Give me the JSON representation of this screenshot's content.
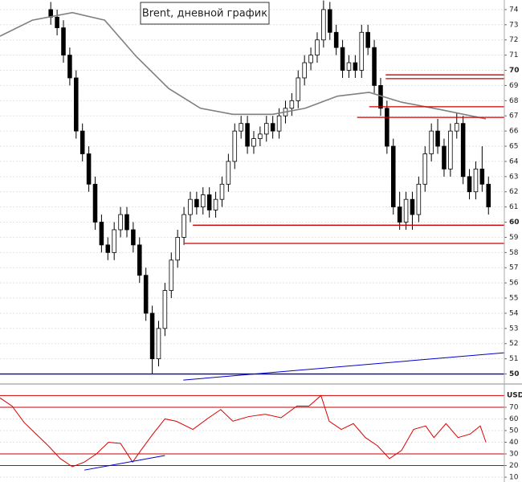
{
  "chart_data": {
    "type": "candlestick",
    "title": "Brent, дневной график",
    "xlim": [
      -8,
      71.5
    ],
    "ylim": [
      49.5,
      74.63
    ],
    "yticks": [
      50,
      51,
      52,
      53,
      54,
      55,
      56,
      57,
      58,
      59,
      60,
      61,
      62,
      63,
      64,
      65,
      66,
      67,
      68,
      69,
      70,
      71,
      72,
      73,
      74
    ],
    "grid": true,
    "candle_color": "#000000",
    "ohlc": [
      [
        74.0,
        74.5,
        73.0,
        73.5
      ],
      [
        73.5,
        74.0,
        72.3,
        72.8
      ],
      [
        72.8,
        73.3,
        70.5,
        71.0
      ],
      [
        71.0,
        71.5,
        69.0,
        69.5
      ],
      [
        69.5,
        70.0,
        65.5,
        66.0
      ],
      [
        66.0,
        66.5,
        64.0,
        64.5
      ],
      [
        64.5,
        65.0,
        62.0,
        62.5
      ],
      [
        62.5,
        63.0,
        59.5,
        60.0
      ],
      [
        60.0,
        60.5,
        58.0,
        58.5
      ],
      [
        58.5,
        59.0,
        57.5,
        58.0
      ],
      [
        58.0,
        60.0,
        57.5,
        59.5
      ],
      [
        59.5,
        61.0,
        59.0,
        60.5
      ],
      [
        60.5,
        61.0,
        59.0,
        59.5
      ],
      [
        59.5,
        60.0,
        58.0,
        58.5
      ],
      [
        58.5,
        59.0,
        56.0,
        56.5
      ],
      [
        56.5,
        57.0,
        53.5,
        54.0
      ],
      [
        54.0,
        54.5,
        50.0,
        51.0
      ],
      [
        51.0,
        53.5,
        50.5,
        53.0
      ],
      [
        53.0,
        56.0,
        52.5,
        55.5
      ],
      [
        55.5,
        58.0,
        55.0,
        57.5
      ],
      [
        57.5,
        59.5,
        57.0,
        59.0
      ],
      [
        59.0,
        61.0,
        58.5,
        60.5
      ],
      [
        60.5,
        62.0,
        60.0,
        61.5
      ],
      [
        61.5,
        62.0,
        60.5,
        61.0
      ],
      [
        61.0,
        62.3,
        60.5,
        61.8
      ],
      [
        61.8,
        62.3,
        60.3,
        60.8
      ],
      [
        60.8,
        62.0,
        60.3,
        61.5
      ],
      [
        61.5,
        63.0,
        61.0,
        62.5
      ],
      [
        62.5,
        64.5,
        62.0,
        64.0
      ],
      [
        64.0,
        66.5,
        63.5,
        66.0
      ],
      [
        66.0,
        67.0,
        65.5,
        66.5
      ],
      [
        66.5,
        67.0,
        64.5,
        65.0
      ],
      [
        65.0,
        66.0,
        64.5,
        65.5
      ],
      [
        65.5,
        66.3,
        65.0,
        65.8
      ],
      [
        65.8,
        67.0,
        65.3,
        66.5
      ],
      [
        66.5,
        67.0,
        65.5,
        66.0
      ],
      [
        66.0,
        67.5,
        65.5,
        67.0
      ],
      [
        67.0,
        68.0,
        66.5,
        67.5
      ],
      [
        67.5,
        68.5,
        67.0,
        68.0
      ],
      [
        68.0,
        70.0,
        67.5,
        69.5
      ],
      [
        69.5,
        71.0,
        69.0,
        70.5
      ],
      [
        70.5,
        71.5,
        70.0,
        71.0
      ],
      [
        71.0,
        72.5,
        70.5,
        72.0
      ],
      [
        72.0,
        74.6,
        71.5,
        74.0
      ],
      [
        74.0,
        74.5,
        72.0,
        72.5
      ],
      [
        72.5,
        73.0,
        71.0,
        71.5
      ],
      [
        71.5,
        72.0,
        69.5,
        70.0
      ],
      [
        70.0,
        71.0,
        69.5,
        70.5
      ],
      [
        70.5,
        71.0,
        69.5,
        70.0
      ],
      [
        70.0,
        73.0,
        69.5,
        72.5
      ],
      [
        72.5,
        73.0,
        71.0,
        71.5
      ],
      [
        71.5,
        72.0,
        68.5,
        69.0
      ],
      [
        69.0,
        69.5,
        67.0,
        67.5
      ],
      [
        67.5,
        68.0,
        64.5,
        65.0
      ],
      [
        65.0,
        65.5,
        60.5,
        61.0
      ],
      [
        61.0,
        62.0,
        59.5,
        60.0
      ],
      [
        60.0,
        62.0,
        59.5,
        61.5
      ],
      [
        61.5,
        62.0,
        59.5,
        60.5
      ],
      [
        60.5,
        63.0,
        60.0,
        62.5
      ],
      [
        62.5,
        65.0,
        62.0,
        64.5
      ],
      [
        64.5,
        66.5,
        64.0,
        66.0
      ],
      [
        66.0,
        66.8,
        64.5,
        65.0
      ],
      [
        65.0,
        65.5,
        63.0,
        63.5
      ],
      [
        63.5,
        66.5,
        63.0,
        66.0
      ],
      [
        66.0,
        67.2,
        65.5,
        66.5
      ],
      [
        66.5,
        67.0,
        62.5,
        63.0
      ],
      [
        63.0,
        63.5,
        61.5,
        62.0
      ],
      [
        62.0,
        64.0,
        61.5,
        63.5
      ],
      [
        63.5,
        65.0,
        62.0,
        62.5
      ],
      [
        62.5,
        63.0,
        60.5,
        61.0
      ]
    ],
    "ma": {
      "color": "#808080",
      "x": [
        -8,
        -2.9,
        3.4,
        8.5,
        13.5,
        18.6,
        23.6,
        28.7,
        35,
        40.1,
        45.2,
        50.2,
        55.3,
        61.6,
        68.6
      ],
      "values": [
        72.25,
        73.3,
        73.8,
        73.3,
        70.9,
        68.8,
        67.5,
        67.1,
        67.1,
        67.5,
        68.3,
        68.55,
        67.9,
        67.4,
        66.8
      ]
    },
    "levels": [
      {
        "value": 69.7,
        "from": 52.8,
        "color": "#cc0000"
      },
      {
        "value": 69.45,
        "from": 52.8,
        "color": "#cc0000"
      },
      {
        "value": 67.6,
        "from": 50.2,
        "color": "#cc0000"
      },
      {
        "value": 66.9,
        "from": 48.3,
        "color": "#cc0000"
      },
      {
        "value": 59.8,
        "from": 22.4,
        "color": "#cc0000"
      },
      {
        "value": 58.6,
        "from": 21.1,
        "color": "#cc0000"
      },
      {
        "value": 50,
        "from": -8,
        "color": "#0000cc"
      }
    ],
    "trendlines": [
      {
        "x": [
          20.9,
          71.5
        ],
        "y": [
          49.6,
          51.4
        ],
        "color": "#0000cc"
      }
    ],
    "rsi": {
      "color": "#dd0000",
      "axis_unit": "USD",
      "ylim": [
        5.9,
        86.5
      ],
      "yticks": [
        10,
        20,
        30,
        40,
        50,
        60,
        70
      ],
      "levels": [
        80,
        70,
        30,
        20
      ],
      "level_color": "#cc0000",
      "x": [
        -8,
        -6.1,
        -4.2,
        -2.3,
        -0.4,
        1.5,
        3.4,
        5.3,
        7.2,
        9.1,
        11,
        12.9,
        14.2,
        16.1,
        18,
        19.8,
        22.4,
        24.9,
        26.8,
        28.7,
        31.2,
        33.8,
        36.3,
        38.8,
        40.7,
        42.6,
        43.9,
        45.8,
        47.7,
        49.6,
        51.5,
        53.4,
        55.3,
        57.2,
        59.1,
        60.4,
        62.3,
        64.2,
        66.1,
        67.7,
        68.6
      ],
      "values": [
        78,
        71,
        57,
        47,
        37,
        26,
        19,
        23,
        30,
        40,
        39,
        23,
        33,
        47,
        60,
        58,
        51,
        61,
        68,
        58,
        62,
        64,
        61,
        71,
        71,
        80,
        58,
        51,
        56,
        44,
        37,
        26,
        33,
        51,
        54,
        44,
        56,
        44,
        47,
        54,
        40
      ],
      "trendline": {
        "x": [
          5.3,
          18
        ],
        "y": [
          16.1,
          28.6
        ],
        "color": "#0000cc"
      }
    }
  }
}
